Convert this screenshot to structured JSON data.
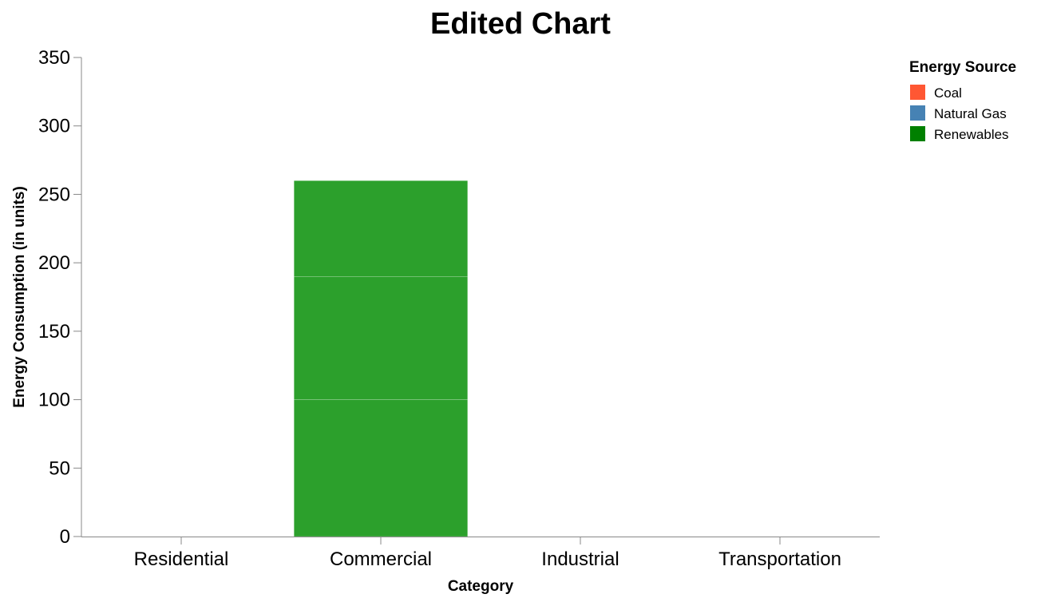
{
  "chart_data": {
    "type": "bar",
    "stacked": true,
    "title": "Edited Chart",
    "xlabel": "Category",
    "ylabel": "Energy Consumption (in units)",
    "ylim": [
      0,
      350
    ],
    "yticks": [
      0,
      50,
      100,
      150,
      200,
      250,
      300,
      350
    ],
    "grid": false,
    "legend_position": "top-right",
    "legend_title": "Energy Source",
    "categories": [
      "Residential",
      "Commercial",
      "Industrial",
      "Transportation"
    ],
    "series": [
      {
        "name": "Coal",
        "legend_color": "#ff5733",
        "bar_color": "#2ca02c",
        "values": [
          0,
          100,
          0,
          0
        ]
      },
      {
        "name": "Natural Gas",
        "legend_color": "#4682b4",
        "bar_color": "#2ca02c",
        "values": [
          0,
          90,
          0,
          0
        ]
      },
      {
        "name": "Renewables",
        "legend_color": "#008000",
        "bar_color": "#2ca02c",
        "values": [
          0,
          70,
          0,
          0
        ]
      }
    ]
  }
}
